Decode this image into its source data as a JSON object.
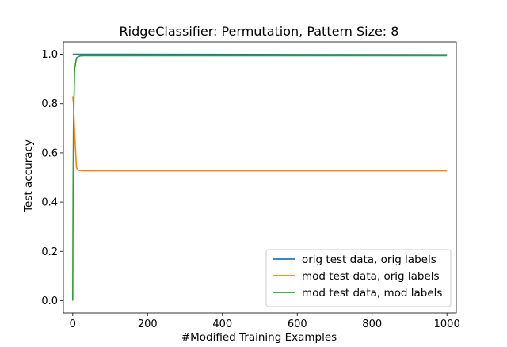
{
  "chart_data": {
    "type": "line",
    "title": "RidgeClassifier: Permutation, Pattern Size: 8",
    "xlabel": "#Modified Training Examples",
    "ylabel": "Test accuracy",
    "xlim": [
      -25,
      1025
    ],
    "ylim": [
      -0.05,
      1.05
    ],
    "xticks": [
      0,
      200,
      400,
      600,
      800,
      1000
    ],
    "xtick_labels": [
      "0",
      "200",
      "400",
      "600",
      "800",
      "1000"
    ],
    "yticks": [
      0.0,
      0.2,
      0.4,
      0.6,
      0.8,
      1.0
    ],
    "ytick_labels": [
      "0.0",
      "0.2",
      "0.4",
      "0.6",
      "0.8",
      "1.0"
    ],
    "grid": false,
    "legend_position": "lower-right",
    "series": [
      {
        "name": "orig test data, orig labels",
        "color": "#1f77b4",
        "x": [
          0,
          10,
          20,
          50,
          100,
          1000
        ],
        "y": [
          1.0,
          1.0,
          1.0,
          1.0,
          1.0,
          0.998
        ]
      },
      {
        "name": "mod test data, orig labels",
        "color": "#ff7f0e",
        "x": [
          0,
          2,
          5,
          10,
          15,
          20,
          30,
          50,
          100,
          1000
        ],
        "y": [
          0.83,
          0.8,
          0.68,
          0.54,
          0.53,
          0.528,
          0.527,
          0.527,
          0.527,
          0.527
        ]
      },
      {
        "name": "mod test data, mod labels",
        "color": "#2ca02c",
        "x": [
          0,
          1,
          2,
          5,
          10,
          15,
          20,
          30,
          50,
          100,
          1000
        ],
        "y": [
          0.0,
          0.48,
          0.7,
          0.94,
          0.985,
          0.99,
          0.993,
          0.994,
          0.994,
          0.994,
          0.994
        ]
      }
    ]
  }
}
